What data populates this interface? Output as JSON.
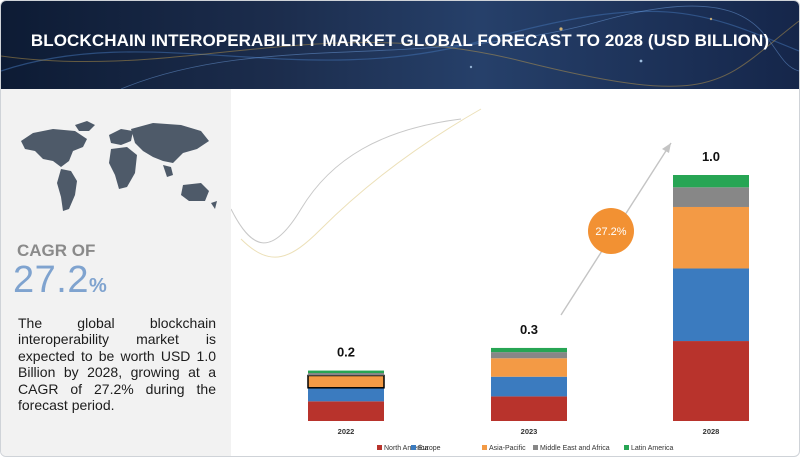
{
  "title": "BLOCKCHAIN INTEROPERABILITY MARKET GLOBAL FORECAST TO 2028 (USD BILLION)",
  "cagr_label": "CAGR OF",
  "cagr_value": "27.2",
  "cagr_unit": "%",
  "description": "The global blockchain interoperability market is expected to be worth USD 1.0 Billion by 2028, growing at a CAGR of 27.2% during the forecast period.",
  "colors": {
    "North America": "#b8332c",
    "Europe": "#3b7bbf",
    "Asia-Pacific": "#f39a45",
    "Middle East and Africa": "#878787",
    "Latin America": "#27a554",
    "badge": "#f29133"
  },
  "chart_data": {
    "type": "bar",
    "stacked": true,
    "categories": [
      "2022",
      "2023",
      "2028"
    ],
    "totals_labels": [
      "0.2",
      "0.3",
      "1.0"
    ],
    "totals": [
      0.2,
      0.3,
      1.0
    ],
    "series": [
      {
        "name": "North America",
        "values": [
          0.08,
          0.1,
          0.325
        ]
      },
      {
        "name": "Europe",
        "values": [
          0.055,
          0.08,
          0.295
        ]
      },
      {
        "name": "Asia-Pacific",
        "values": [
          0.05,
          0.075,
          0.25
        ]
      },
      {
        "name": "Middle East and Africa",
        "values": [
          0.01,
          0.025,
          0.08
        ]
      },
      {
        "name": "Latin America",
        "values": [
          0.01,
          0.017,
          0.05
        ]
      }
    ],
    "ylim": [
      0,
      1.0
    ],
    "growth_badge": "27.2%",
    "legend_position": "bottom",
    "grid": false
  }
}
